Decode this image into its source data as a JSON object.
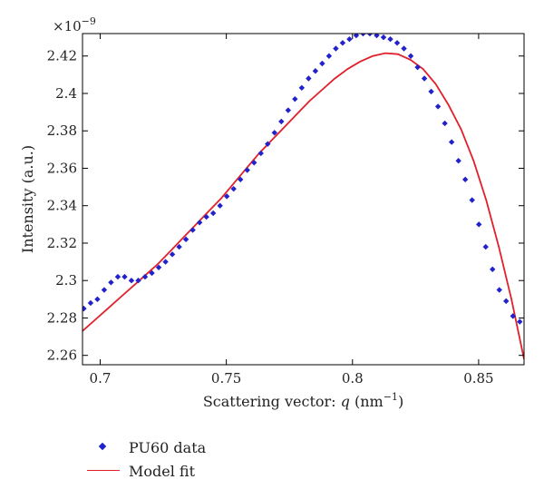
{
  "chart_data": {
    "type": "scatter",
    "xlabel_prefix": "Scattering vector: ",
    "xlabel_var": "q",
    "xlabel_unit_open": " (nm",
    "xlabel_unit_exp": "−1",
    "xlabel_unit_close": ")",
    "ylabel": "Intensity (a.u.)",
    "y_multiplier_base": "×10",
    "y_multiplier_exp": "−9",
    "xlim": [
      0.693,
      0.868
    ],
    "ylim": [
      2.255,
      2.432
    ],
    "x_ticks": [
      0.7,
      0.75,
      0.8,
      0.85
    ],
    "x_tick_labels": [
      "0.7",
      "0.75",
      "0.8",
      "0.85"
    ],
    "y_ticks": [
      2.26,
      2.28,
      2.3,
      2.32,
      2.34,
      2.36,
      2.38,
      2.4,
      2.42
    ],
    "y_tick_labels": [
      "2.26",
      "2.28",
      "2.3",
      "2.32",
      "2.34",
      "2.36",
      "2.38",
      "2.4",
      "2.42"
    ],
    "grid": false,
    "legend_position": "below",
    "series": [
      {
        "name": "PU60 data",
        "type": "scatter",
        "color": "#2222cc",
        "x": [
          0.6935,
          0.6962,
          0.6989,
          0.7016,
          0.7043,
          0.707,
          0.7097,
          0.7124,
          0.7151,
          0.7178,
          0.7205,
          0.7232,
          0.7259,
          0.7286,
          0.7313,
          0.734,
          0.7367,
          0.7394,
          0.7421,
          0.7448,
          0.7475,
          0.7502,
          0.7529,
          0.7556,
          0.7583,
          0.761,
          0.7637,
          0.7664,
          0.7691,
          0.7718,
          0.7745,
          0.7772,
          0.7799,
          0.7826,
          0.7853,
          0.788,
          0.7907,
          0.7934,
          0.7961,
          0.7988,
          0.8015,
          0.8042,
          0.8069,
          0.8096,
          0.8123,
          0.815,
          0.8177,
          0.8204,
          0.8231,
          0.8258,
          0.8285,
          0.8312,
          0.8339,
          0.8366,
          0.8393,
          0.842,
          0.8447,
          0.8474,
          0.8501,
          0.8528,
          0.8555,
          0.8582,
          0.8609,
          0.8636,
          0.8663
        ],
        "y": [
          2.285,
          2.288,
          2.29,
          2.295,
          2.299,
          2.302,
          2.302,
          2.3,
          2.3,
          2.302,
          2.304,
          2.307,
          2.31,
          2.314,
          2.318,
          2.322,
          2.327,
          2.331,
          2.334,
          2.336,
          2.34,
          2.345,
          2.349,
          2.354,
          2.359,
          2.363,
          2.368,
          2.373,
          2.379,
          2.385,
          2.391,
          2.397,
          2.403,
          2.408,
          2.412,
          2.416,
          2.42,
          2.424,
          2.427,
          2.429,
          2.431,
          2.432,
          2.432,
          2.431,
          2.43,
          2.429,
          2.427,
          2.424,
          2.42,
          2.414,
          2.408,
          2.401,
          2.393,
          2.384,
          2.374,
          2.364,
          2.354,
          2.343,
          2.33,
          2.318,
          2.306,
          2.295,
          2.289,
          2.281,
          2.278
        ]
      },
      {
        "name": "Model fit",
        "type": "line",
        "color": "#e0202a",
        "x": [
          0.693,
          0.698,
          0.703,
          0.708,
          0.713,
          0.718,
          0.723,
          0.728,
          0.733,
          0.738,
          0.743,
          0.748,
          0.753,
          0.758,
          0.763,
          0.768,
          0.773,
          0.778,
          0.783,
          0.788,
          0.793,
          0.798,
          0.803,
          0.808,
          0.813,
          0.818,
          0.823,
          0.828,
          0.833,
          0.838,
          0.843,
          0.848,
          0.853,
          0.858,
          0.863,
          0.868
        ],
        "y": [
          2.273,
          2.279,
          2.285,
          2.291,
          2.297,
          2.303,
          2.309,
          2.316,
          2.323,
          2.33,
          2.337,
          2.344,
          2.352,
          2.36,
          2.368,
          2.375,
          2.382,
          2.389,
          2.396,
          2.402,
          2.408,
          2.413,
          2.417,
          2.42,
          2.4215,
          2.421,
          2.418,
          2.413,
          2.405,
          2.394,
          2.381,
          2.364,
          2.343,
          2.318,
          2.29,
          2.258
        ]
      }
    ]
  }
}
